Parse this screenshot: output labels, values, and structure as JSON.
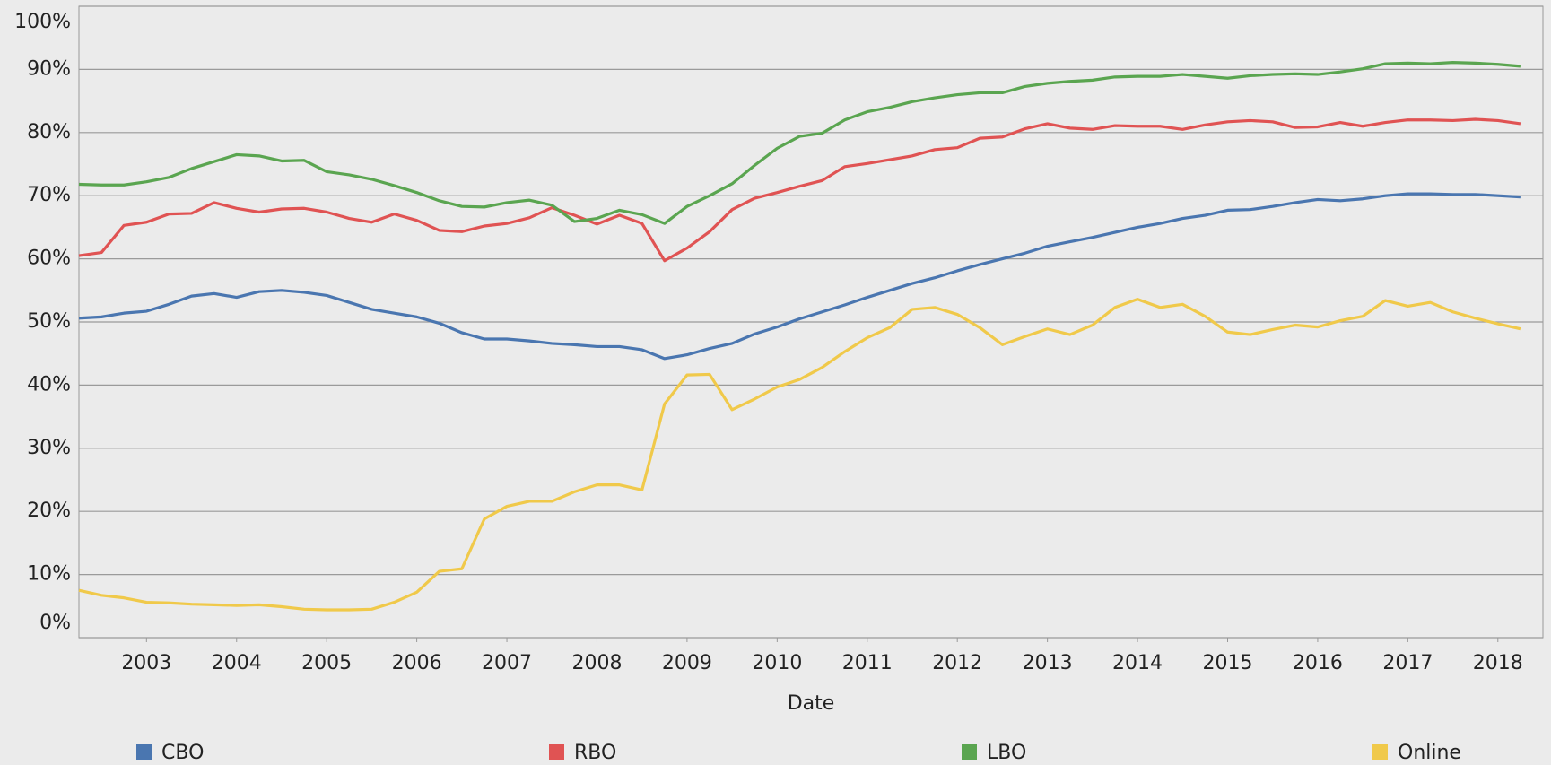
{
  "chart_data": {
    "type": "line",
    "x_label": "Date",
    "x": [
      2002.25,
      2002.5,
      2002.75,
      2003,
      2003.25,
      2003.5,
      2003.75,
      2004,
      2004.25,
      2004.5,
      2004.75,
      2005,
      2005.25,
      2005.5,
      2005.75,
      2006,
      2006.25,
      2006.5,
      2006.75,
      2007,
      2007.25,
      2007.5,
      2007.75,
      2008,
      2008.25,
      2008.5,
      2008.75,
      2009,
      2009.25,
      2009.5,
      2009.75,
      2010,
      2010.25,
      2010.5,
      2010.75,
      2011,
      2011.25,
      2011.5,
      2011.75,
      2012,
      2012.25,
      2012.5,
      2012.75,
      2013,
      2013.25,
      2013.5,
      2013.75,
      2014,
      2014.25,
      2014.5,
      2014.75,
      2015,
      2015.25,
      2015.5,
      2015.75,
      2016,
      2016.25,
      2016.5,
      2016.75,
      2017,
      2017.25,
      2017.5,
      2017.75,
      2018,
      2018.25
    ],
    "series": [
      {
        "name": "CBO",
        "color": "#4a76b0",
        "values": [
          50.6,
          50.8,
          51.4,
          51.7,
          52.8,
          54.1,
          54.5,
          53.9,
          54.8,
          55.0,
          54.7,
          54.2,
          53.1,
          52.0,
          51.4,
          50.8,
          49.8,
          48.3,
          47.3,
          47.3,
          47.0,
          46.6,
          46.4,
          46.1,
          46.1,
          45.6,
          44.2,
          44.8,
          45.8,
          46.6,
          48.1,
          49.2,
          50.5,
          51.6,
          52.7,
          53.9,
          55.0,
          56.1,
          57.0,
          58.1,
          59.1,
          60.0,
          60.9,
          62.0,
          62.7,
          63.4,
          64.2,
          65.0,
          65.6,
          66.4,
          66.9,
          67.7,
          67.8,
          68.3,
          68.9,
          69.4,
          69.2,
          69.5,
          70.0,
          70.3,
          70.3,
          70.2,
          70.2,
          70.0,
          69.8
        ]
      },
      {
        "name": "RBO",
        "color": "#e05353",
        "values": [
          60.5,
          61.0,
          65.3,
          65.8,
          67.1,
          67.2,
          68.9,
          68.0,
          67.4,
          67.9,
          68.0,
          67.4,
          66.4,
          65.8,
          67.1,
          66.1,
          64.5,
          64.3,
          65.2,
          65.6,
          66.5,
          68.1,
          66.9,
          65.5,
          66.9,
          65.6,
          59.7,
          61.7,
          64.3,
          67.8,
          69.6,
          70.5,
          71.5,
          72.4,
          74.6,
          75.1,
          75.7,
          76.3,
          77.3,
          77.6,
          79.1,
          79.3,
          80.6,
          81.4,
          80.7,
          80.5,
          81.1,
          81.0,
          81.0,
          80.5,
          81.2,
          81.7,
          81.9,
          81.7,
          80.8,
          80.9,
          81.6,
          81.0,
          81.6,
          82.0,
          82.0,
          81.9,
          82.1,
          81.9,
          81.4
        ]
      },
      {
        "name": "LBO",
        "color": "#5aa550",
        "values": [
          71.8,
          71.7,
          71.7,
          72.2,
          72.9,
          74.3,
          75.4,
          76.5,
          76.3,
          75.5,
          75.6,
          73.8,
          73.3,
          72.6,
          71.6,
          70.5,
          69.2,
          68.3,
          68.2,
          68.9,
          69.3,
          68.5,
          65.9,
          66.4,
          67.7,
          67.0,
          65.6,
          68.3,
          70.0,
          71.9,
          74.8,
          77.5,
          79.4,
          79.9,
          82.0,
          83.3,
          84.0,
          84.9,
          85.5,
          86.0,
          86.3,
          86.3,
          87.3,
          87.8,
          88.1,
          88.3,
          88.8,
          88.9,
          88.9,
          89.2,
          88.9,
          88.6,
          89.0,
          89.2,
          89.3,
          89.2,
          89.6,
          90.1,
          90.9,
          91.0,
          90.9,
          91.1,
          91.0,
          90.8,
          90.5
        ]
      },
      {
        "name": "Online",
        "color": "#f0c94a",
        "values": [
          7.5,
          6.7,
          6.3,
          5.6,
          5.5,
          5.3,
          5.2,
          5.1,
          5.2,
          4.9,
          4.5,
          4.4,
          4.4,
          4.5,
          5.6,
          7.2,
          10.5,
          10.9,
          18.8,
          20.8,
          21.6,
          21.6,
          23.1,
          24.2,
          24.2,
          23.4,
          37.0,
          41.6,
          41.7,
          36.1,
          37.8,
          39.7,
          40.9,
          42.8,
          45.3,
          47.5,
          49.1,
          52.0,
          52.3,
          51.2,
          49.1,
          46.4,
          47.7,
          48.9,
          48.0,
          49.5,
          52.3,
          53.6,
          52.3,
          52.8,
          50.9,
          48.4,
          48.0,
          48.8,
          49.5,
          49.2,
          50.2,
          50.9,
          53.4,
          52.5,
          53.1,
          51.6,
          50.6,
          49.7,
          48.9
        ]
      }
    ],
    "xlim": [
      2002.25,
      2018.5
    ],
    "xticks": [
      2003,
      2004,
      2005,
      2006,
      2007,
      2008,
      2009,
      2010,
      2011,
      2012,
      2013,
      2014,
      2015,
      2016,
      2017,
      2018
    ],
    "ylim": [
      0,
      100
    ],
    "yticks": [
      {
        "value": 0,
        "label": "0%"
      },
      {
        "value": 10,
        "label": "10%"
      },
      {
        "value": 20,
        "label": "20%"
      },
      {
        "value": 30,
        "label": "30%"
      },
      {
        "value": 40,
        "label": "40%"
      },
      {
        "value": 50,
        "label": "50%"
      },
      {
        "value": 60,
        "label": "60%"
      },
      {
        "value": 70,
        "label": "70%"
      },
      {
        "value": 80,
        "label": "80%"
      },
      {
        "value": 90,
        "label": "90%"
      },
      {
        "value": 100,
        "label": "100%"
      }
    ],
    "grid": true,
    "legend": "bottom"
  }
}
